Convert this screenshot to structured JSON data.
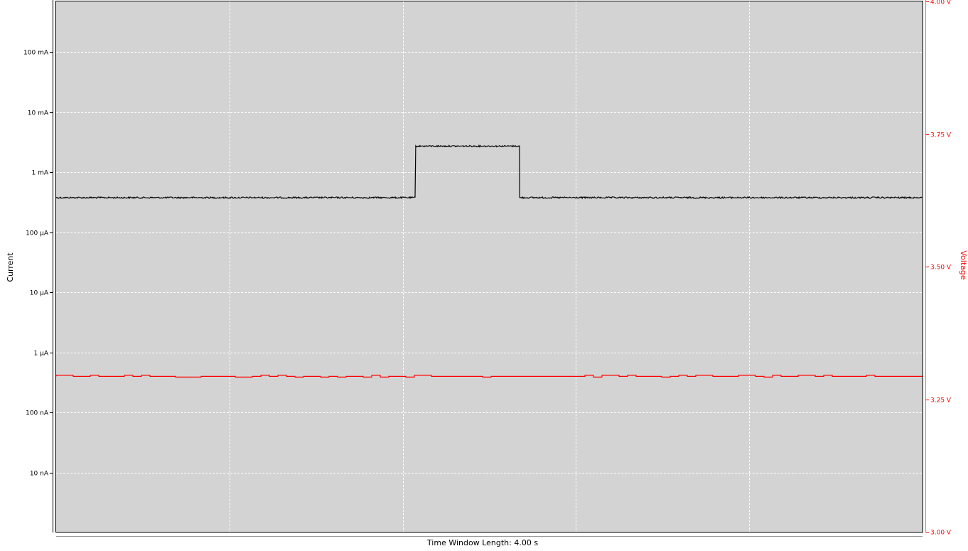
{
  "chart_data": {
    "type": "line",
    "xlabel": "Time Window Length: 4.00 s",
    "x_range_s": [
      0,
      4
    ],
    "grid": true,
    "y_left": {
      "label": "Current",
      "scale": "log",
      "range_A": [
        1e-09,
        1.0
      ],
      "ticks": [
        {
          "value": 0.1,
          "label": "100 mA"
        },
        {
          "value": 0.01,
          "label": "10 mA"
        },
        {
          "value": 0.001,
          "label": "1 mA"
        },
        {
          "value": 0.0001,
          "label": "100 µA"
        },
        {
          "value": 1e-05,
          "label": "10 µA"
        },
        {
          "value": 1e-06,
          "label": "1 µA"
        },
        {
          "value": 1e-07,
          "label": "100 nA"
        },
        {
          "value": 1e-08,
          "label": "10 nA"
        }
      ]
    },
    "y_right": {
      "label": "Voltage",
      "scale": "linear",
      "range_V": [
        3.0,
        4.0
      ],
      "ticks": [
        {
          "value": 4.0,
          "label": "4.00 V"
        },
        {
          "value": 3.75,
          "label": "3.75 V"
        },
        {
          "value": 3.5,
          "label": "3.50 V"
        },
        {
          "value": 3.25,
          "label": "3.25 V"
        },
        {
          "value": 3.0,
          "label": "3.00 V"
        }
      ]
    },
    "series": [
      {
        "axis": "left",
        "color": "#000000",
        "segments": [
          {
            "t_start": 0.0,
            "t_end": 1.66,
            "value_A": 0.000375
          },
          {
            "t_start": 1.66,
            "t_end": 2.14,
            "value_A": 0.0027
          },
          {
            "t_start": 2.14,
            "t_end": 4.0,
            "value_A": 0.000375
          }
        ]
      },
      {
        "axis": "right",
        "color": "#ff0000",
        "value_V": 3.293
      }
    ],
    "colors": {
      "plot_background": "#d3d3d3",
      "grid": "#ffffff",
      "left_axis": "#000000",
      "right_axis": "#ff0000"
    }
  }
}
